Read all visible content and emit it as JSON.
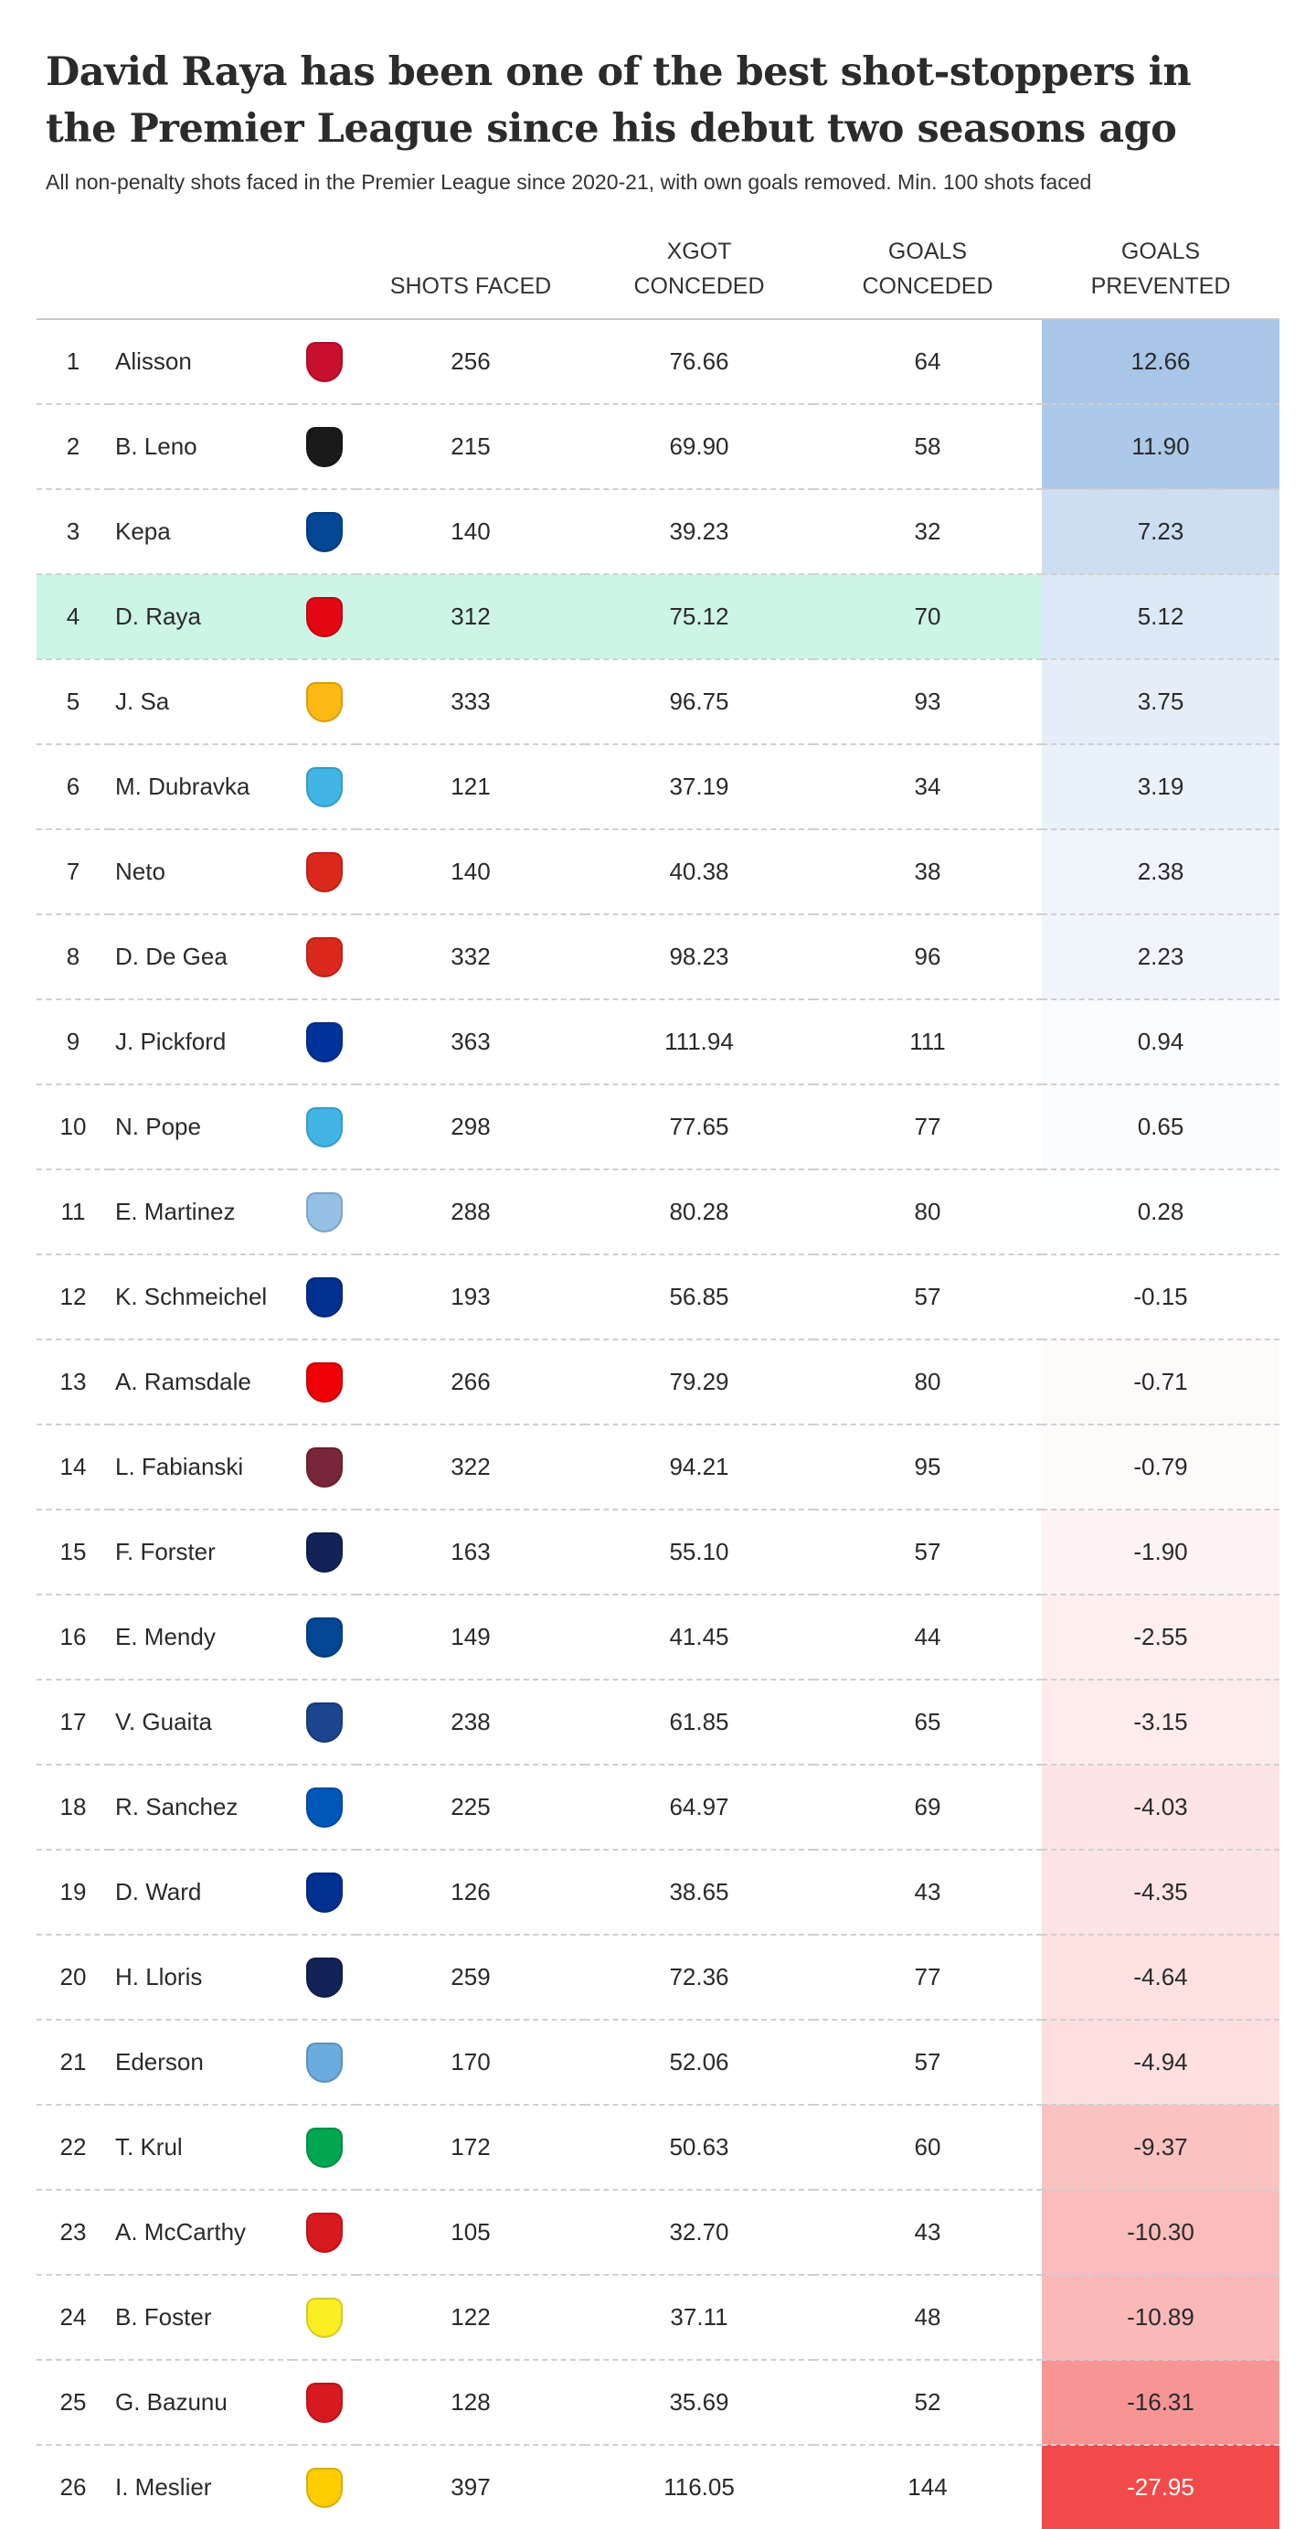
{
  "title": "David Raya has been one of the best shot-stoppers in the Premier League since his debut two seasons ago",
  "subtitle": "All non-penalty shots faced in the Premier League since 2020-21, with own goals removed. Min. 100 shots faced",
  "columns": {
    "shots_faced": "SHOTS FACED",
    "xgot_line1": "XGOT",
    "xgot_line2": "CONCEDED",
    "goals_line1": "GOALS",
    "goals_line2": "CONCEDED",
    "prev_line1": "GOALS",
    "prev_line2": "PREVENTED"
  },
  "highlight_color": "#cdf5e6",
  "chart_data": {
    "type": "table",
    "highlight_rank": 4,
    "color_scale": {
      "positive": "#a8c6e8",
      "negative": "#f24a4a"
    },
    "rows": [
      {
        "rank": 1,
        "name": "Alisson",
        "crest_icon": "liverpool-crest-icon",
        "crest_color": "#c8102e",
        "shots": 256,
        "xgot": "76.66",
        "goals": 64,
        "prevented": "12.66"
      },
      {
        "rank": 2,
        "name": "B. Leno",
        "crest_icon": "fulham-crest-icon",
        "crest_color": "#1a1a1a",
        "shots": 215,
        "xgot": "69.90",
        "goals": 58,
        "prevented": "11.90"
      },
      {
        "rank": 3,
        "name": "Kepa",
        "crest_icon": "chelsea-crest-icon",
        "crest_color": "#034694",
        "shots": 140,
        "xgot": "39.23",
        "goals": 32,
        "prevented": "7.23"
      },
      {
        "rank": 4,
        "name": "D. Raya",
        "crest_icon": "brentford-crest-icon",
        "crest_color": "#e30613",
        "shots": 312,
        "xgot": "75.12",
        "goals": 70,
        "prevented": "5.12"
      },
      {
        "rank": 5,
        "name": "J. Sa",
        "crest_icon": "wolves-crest-icon",
        "crest_color": "#fdb913",
        "shots": 333,
        "xgot": "96.75",
        "goals": 93,
        "prevented": "3.75"
      },
      {
        "rank": 6,
        "name": "M. Dubravka",
        "crest_icon": "newcastle-crest-icon",
        "crest_color": "#41b6e6",
        "shots": 121,
        "xgot": "37.19",
        "goals": 34,
        "prevented": "3.19"
      },
      {
        "rank": 7,
        "name": "Neto",
        "crest_icon": "bournemouth-crest-icon",
        "crest_color": "#da291c",
        "shots": 140,
        "xgot": "40.38",
        "goals": 38,
        "prevented": "2.38"
      },
      {
        "rank": 8,
        "name": "D. De Gea",
        "crest_icon": "man-united-crest-icon",
        "crest_color": "#da291c",
        "shots": 332,
        "xgot": "98.23",
        "goals": 96,
        "prevented": "2.23"
      },
      {
        "rank": 9,
        "name": "J. Pickford",
        "crest_icon": "everton-crest-icon",
        "crest_color": "#003399",
        "shots": 363,
        "xgot": "111.94",
        "goals": 111,
        "prevented": "0.94"
      },
      {
        "rank": 10,
        "name": "N. Pope",
        "crest_icon": "newcastle-crest-icon",
        "crest_color": "#41b6e6",
        "shots": 298,
        "xgot": "77.65",
        "goals": 77,
        "prevented": "0.65"
      },
      {
        "rank": 11,
        "name": "E. Martinez",
        "crest_icon": "aston-villa-crest-icon",
        "crest_color": "#95bfe5",
        "shots": 288,
        "xgot": "80.28",
        "goals": 80,
        "prevented": "0.28"
      },
      {
        "rank": 12,
        "name": "K. Schmeichel",
        "crest_icon": "leicester-crest-icon",
        "crest_color": "#003090",
        "shots": 193,
        "xgot": "56.85",
        "goals": 57,
        "prevented": "-0.15"
      },
      {
        "rank": 13,
        "name": "A. Ramsdale",
        "crest_icon": "arsenal-crest-icon",
        "crest_color": "#ef0107",
        "shots": 266,
        "xgot": "79.29",
        "goals": 80,
        "prevented": "-0.71"
      },
      {
        "rank": 14,
        "name": "L. Fabianski",
        "crest_icon": "west-ham-crest-icon",
        "crest_color": "#7a263a",
        "shots": 322,
        "xgot": "94.21",
        "goals": 95,
        "prevented": "-0.79"
      },
      {
        "rank": 15,
        "name": "F. Forster",
        "crest_icon": "tottenham-crest-icon",
        "crest_color": "#132257",
        "shots": 163,
        "xgot": "55.10",
        "goals": 57,
        "prevented": "-1.90"
      },
      {
        "rank": 16,
        "name": "E. Mendy",
        "crest_icon": "chelsea-crest-icon",
        "crest_color": "#034694",
        "shots": 149,
        "xgot": "41.45",
        "goals": 44,
        "prevented": "-2.55"
      },
      {
        "rank": 17,
        "name": "V. Guaita",
        "crest_icon": "crystal-palace-crest-icon",
        "crest_color": "#1b458f",
        "shots": 238,
        "xgot": "61.85",
        "goals": 65,
        "prevented": "-3.15"
      },
      {
        "rank": 18,
        "name": "R. Sanchez",
        "crest_icon": "brighton-crest-icon",
        "crest_color": "#0057b8",
        "shots": 225,
        "xgot": "64.97",
        "goals": 69,
        "prevented": "-4.03"
      },
      {
        "rank": 19,
        "name": "D. Ward",
        "crest_icon": "leicester-crest-icon",
        "crest_color": "#003090",
        "shots": 126,
        "xgot": "38.65",
        "goals": 43,
        "prevented": "-4.35"
      },
      {
        "rank": 20,
        "name": "H. Lloris",
        "crest_icon": "tottenham-crest-icon",
        "crest_color": "#132257",
        "shots": 259,
        "xgot": "72.36",
        "goals": 77,
        "prevented": "-4.64"
      },
      {
        "rank": 21,
        "name": "Ederson",
        "crest_icon": "man-city-crest-icon",
        "crest_color": "#6cabdd",
        "shots": 170,
        "xgot": "52.06",
        "goals": 57,
        "prevented": "-4.94"
      },
      {
        "rank": 22,
        "name": "T. Krul",
        "crest_icon": "norwich-crest-icon",
        "crest_color": "#00a650",
        "shots": 172,
        "xgot": "50.63",
        "goals": 60,
        "prevented": "-9.37"
      },
      {
        "rank": 23,
        "name": "A. McCarthy",
        "crest_icon": "southampton-crest-icon",
        "crest_color": "#d71920",
        "shots": 105,
        "xgot": "32.70",
        "goals": 43,
        "prevented": "-10.30"
      },
      {
        "rank": 24,
        "name": "B. Foster",
        "crest_icon": "watford-crest-icon",
        "crest_color": "#fbee23",
        "shots": 122,
        "xgot": "37.11",
        "goals": 48,
        "prevented": "-10.89"
      },
      {
        "rank": 25,
        "name": "G. Bazunu",
        "crest_icon": "southampton-crest-icon",
        "crest_color": "#d71920",
        "shots": 128,
        "xgot": "35.69",
        "goals": 52,
        "prevented": "-16.31"
      },
      {
        "rank": 26,
        "name": "I. Meslier",
        "crest_icon": "leeds-crest-icon",
        "crest_color": "#ffcd00",
        "shots": 397,
        "xgot": "116.05",
        "goals": 144,
        "prevented": "-27.95"
      }
    ]
  }
}
